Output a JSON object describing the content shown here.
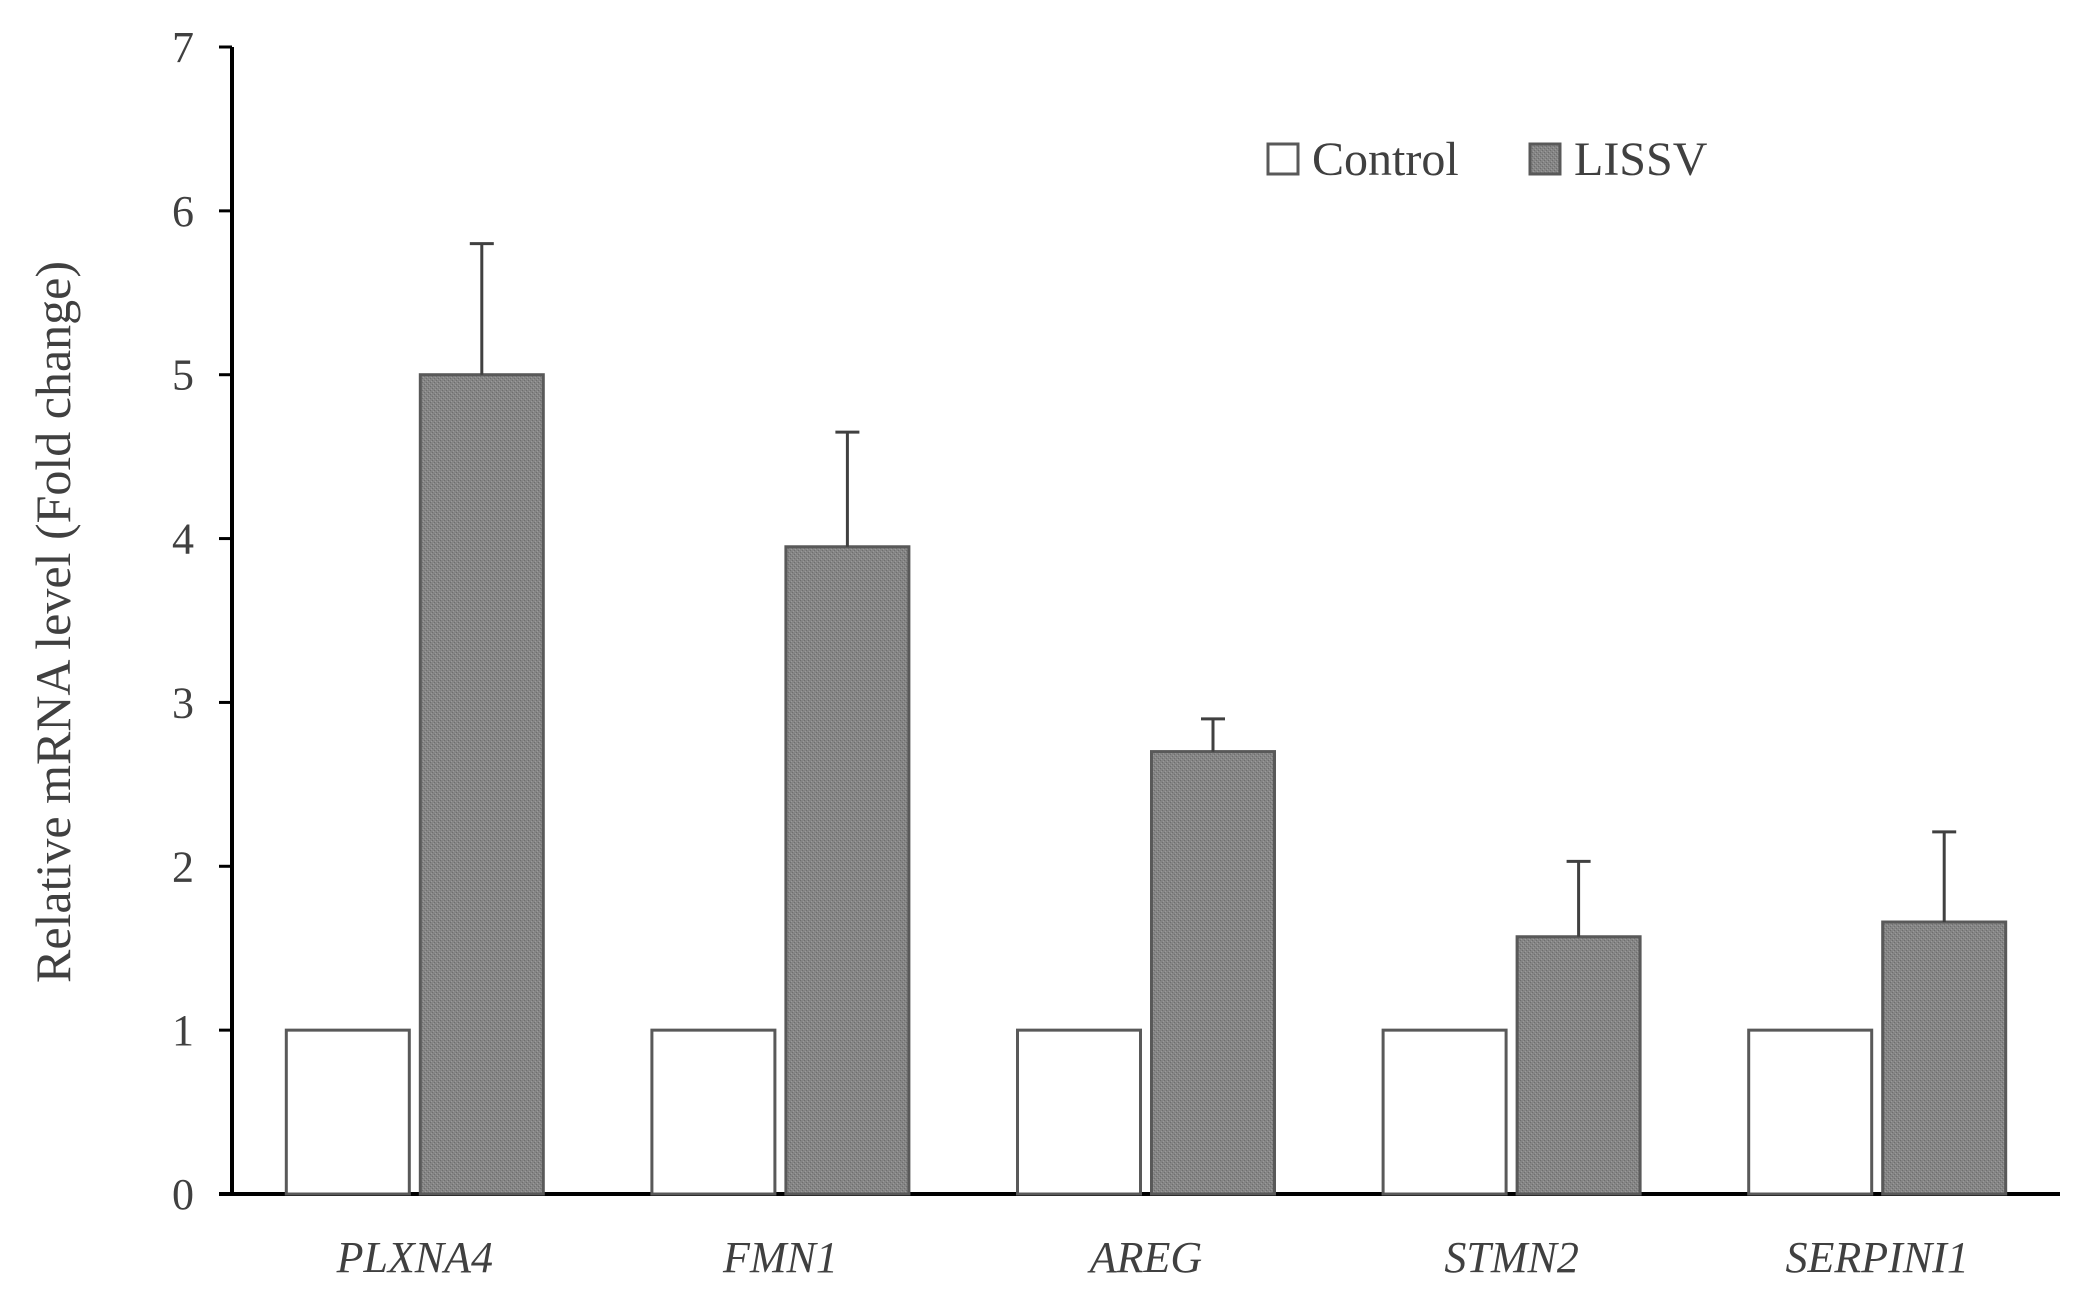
{
  "chart_data": {
    "type": "bar",
    "title": "",
    "xlabel": "",
    "ylabel": "Relative mRNA level (Fold change)",
    "ylim": [
      0,
      7
    ],
    "yticks": [
      0,
      1,
      2,
      3,
      4,
      5,
      6,
      7
    ],
    "grid": false,
    "legend_position": "top-right",
    "categories": [
      "PLXNA4",
      "FMN1",
      "AREG",
      "STMN2",
      "SERPINI1"
    ],
    "series": [
      {
        "name": "Control",
        "values": [
          1,
          1,
          1,
          1,
          1
        ],
        "errors": [
          0,
          0,
          0,
          0,
          0
        ],
        "fill": "#ffffff",
        "stroke": "#595959"
      },
      {
        "name": "LISSV",
        "values": [
          5.0,
          3.95,
          2.7,
          1.57,
          1.66
        ],
        "errors": [
          0.8,
          0.7,
          0.2,
          0.46,
          0.55
        ],
        "fill": "#7f7f7f",
        "stroke": "#595959"
      }
    ]
  }
}
